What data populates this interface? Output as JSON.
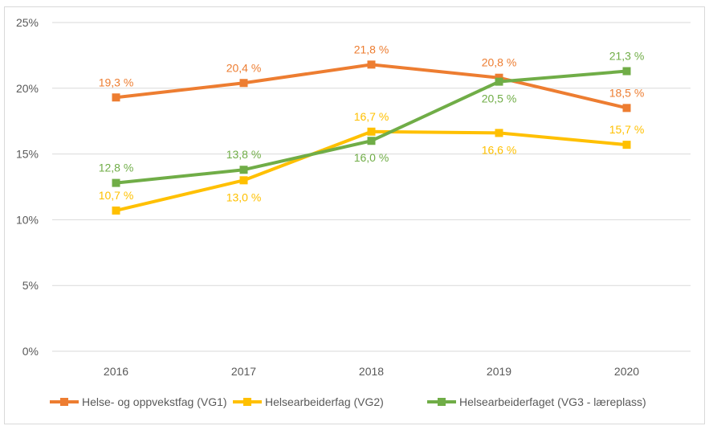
{
  "chart_data": {
    "type": "line",
    "categories": [
      "2016",
      "2017",
      "2018",
      "2019",
      "2020"
    ],
    "ylim": [
      0,
      25
    ],
    "yticks": [
      "0%",
      "5%",
      "10%",
      "15%",
      "20%",
      "25%"
    ],
    "grid": true,
    "legend": "bottom",
    "series": [
      {
        "name": "Helse- og oppvekstfag (VG1)",
        "color": "#ED7D31",
        "values": [
          19.3,
          20.4,
          21.8,
          20.8,
          18.5
        ],
        "labels": [
          "19,3 %",
          "20,4 %",
          "21,8 %",
          "20,8 %",
          "18,5 %"
        ],
        "label_pos": [
          "above",
          "above",
          "above",
          "above",
          "above"
        ]
      },
      {
        "name": "Helsearbeiderfag (VG2)",
        "color": "#FFC000",
        "values": [
          10.7,
          13.0,
          16.7,
          16.6,
          15.7
        ],
        "labels": [
          "10,7 %",
          "13,0 %",
          "16,7 %",
          "16,6 %",
          "15,7 %"
        ],
        "label_pos": [
          "above",
          "below",
          "above",
          "below",
          "above"
        ]
      },
      {
        "name": "Helsearbeiderfaget (VG3 - læreplass)",
        "color": "#70AD47",
        "values": [
          12.8,
          13.8,
          16.0,
          20.5,
          21.3
        ],
        "labels": [
          "12,8 %",
          "13,8 %",
          "16,0 %",
          "20,5 %",
          "21,3 %"
        ],
        "label_pos": [
          "above",
          "above",
          "below",
          "below",
          "above"
        ]
      }
    ]
  }
}
